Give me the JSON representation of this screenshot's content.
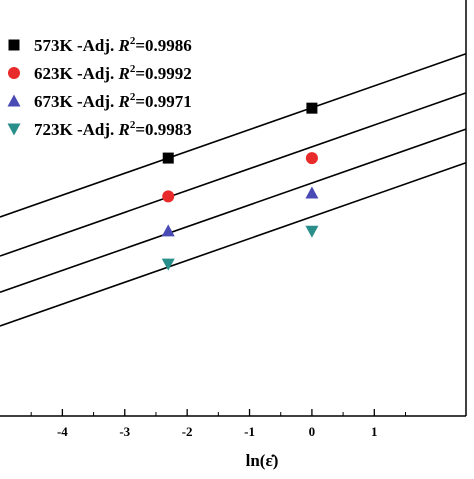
{
  "chart_data": {
    "type": "scatter",
    "title": "",
    "xlabel": "ln(ε̇)",
    "ylabel": "",
    "xlim": [
      -5,
      2.47
    ],
    "ylim": [
      0,
      1
    ],
    "x_ticks": [
      -4,
      -3,
      -2,
      -1,
      0,
      1
    ],
    "x_tick_labels": [
      "-4",
      "-3",
      "-2",
      "-1",
      "0",
      "1"
    ],
    "legend_position": "top-left",
    "grid": false,
    "series": [
      {
        "name": "573K -Adj.",
        "r2_label": "=0.9986",
        "marker": "square",
        "color": "#000000",
        "x": [
          -2.303,
          0
        ],
        "y": [
          0.62,
          0.74
        ],
        "fit": {
          "slope": 0.0525,
          "intercept": 0.741
        }
      },
      {
        "name": "623K -Adj.",
        "r2_label": "=0.9992",
        "marker": "circle",
        "color": "#e82a2a",
        "x": [
          -2.303,
          0
        ],
        "y": [
          0.528,
          0.62
        ],
        "fit": {
          "slope": 0.0525,
          "intercept": 0.647
        }
      },
      {
        "name": "673K -Adj.",
        "r2_label": "=0.9971",
        "marker": "triangle-up",
        "color": "#4a4ab5",
        "x": [
          -2.303,
          0
        ],
        "y": [
          0.445,
          0.536
        ],
        "fit": {
          "slope": 0.0525,
          "intercept": 0.56
        }
      },
      {
        "name": "723K -Adj.",
        "r2_label": "=0.9983",
        "marker": "triangle-down",
        "color": "#2a8f8a",
        "x": [
          -2.303,
          0
        ],
        "y": [
          0.365,
          0.444
        ],
        "fit": {
          "slope": 0.0525,
          "intercept": 0.479
        }
      }
    ]
  }
}
